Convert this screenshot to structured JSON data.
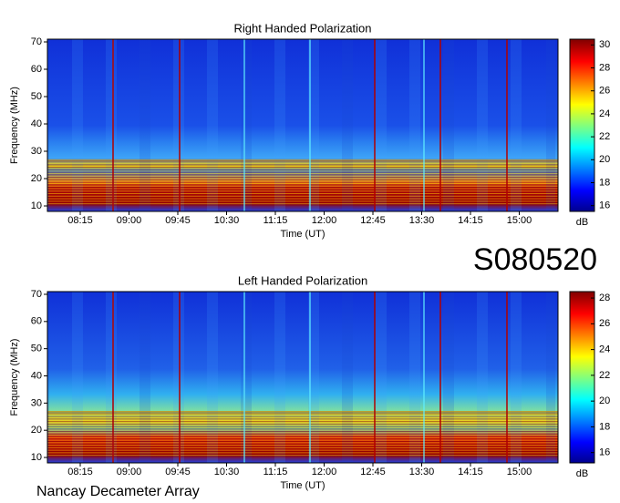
{
  "chart_data": [
    {
      "type": "heatmap",
      "title": "Right Handed Polarization",
      "xlabel": "Time (UT)",
      "ylabel": "Frequency (MHz)",
      "xticks": [
        "08:15",
        "09:00",
        "09:45",
        "10:30",
        "11:15",
        "12:00",
        "12:45",
        "13:30",
        "14:15",
        "15:00"
      ],
      "ylim": [
        8,
        71
      ],
      "yticks": [
        10,
        20,
        30,
        40,
        50,
        60,
        70
      ],
      "colorbar_label": "dB",
      "clim": [
        15.5,
        30.5
      ],
      "cticks": [
        16,
        18,
        20,
        22,
        24,
        26,
        28,
        30
      ]
    },
    {
      "type": "heatmap",
      "title": "Left Handed Polarization",
      "xlabel": "Time (UT)",
      "ylabel": "Frequency (MHz)",
      "xticks": [
        "08:15",
        "09:00",
        "09:45",
        "10:30",
        "11:15",
        "12:00",
        "12:45",
        "13:30",
        "14:15",
        "15:00"
      ],
      "ylim": [
        8,
        71
      ],
      "yticks": [
        10,
        20,
        30,
        40,
        50,
        60,
        70
      ],
      "colorbar_label": "dB",
      "clim": [
        15.2,
        28.5
      ],
      "cticks": [
        16,
        18,
        20,
        22,
        24,
        26,
        28
      ]
    }
  ],
  "observation": "S080520",
  "observatory": "Nancay Decameter Array"
}
